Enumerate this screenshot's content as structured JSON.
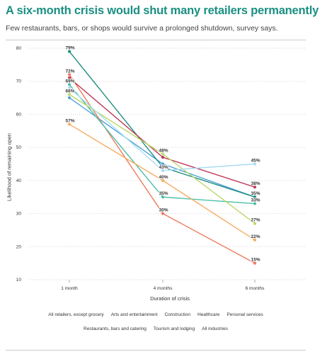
{
  "header": {
    "title": "A six-month crisis would shut many retailers permanently",
    "subtitle": "Few restaurants, bars, or shops would survive a prolonged shutdown, survey says."
  },
  "chart_data": {
    "type": "line",
    "title": "A six-month crisis would shut many retailers permanently",
    "subtitle": "Few restaurants, bars, or shops would survive a prolonged shutdown, survey says.",
    "xlabel": "Duration of crisis",
    "ylabel": "Likelihood of remaining open",
    "categories": [
      "1 month",
      "4 months",
      "6 months"
    ],
    "ylim": [
      10,
      80
    ],
    "yticks": [
      80,
      70,
      60,
      50,
      40,
      30,
      20,
      10
    ],
    "grid": true,
    "legend_position": "bottom",
    "series": [
      {
        "name": "All retailers, except grocery",
        "color": "#4fa3db",
        "values": [
          65,
          45,
          35
        ],
        "labels": [
          "",
          "",
          ""
        ]
      },
      {
        "name": "Arts and entertainment",
        "color": "#ee7b5e",
        "values": [
          72,
          30,
          15
        ],
        "labels": [
          "72%",
          "30%",
          "15%"
        ]
      },
      {
        "name": "Construction",
        "color": "#4cbfa8",
        "values": [
          69,
          35,
          33
        ],
        "labels": [
          "69%",
          "35%",
          "33%"
        ]
      },
      {
        "name": "Healthcare",
        "color": "#1f8f80",
        "values": [
          79,
          44,
          35
        ],
        "labels": [
          "79%",
          "",
          "35%"
        ]
      },
      {
        "name": "Personal services",
        "color": "#c03a5c",
        "values": [
          71,
          47,
          38
        ],
        "labels": [
          "",
          "",
          "38%"
        ]
      },
      {
        "name": "Restaurants, bars and catering",
        "color": "#f5ad63",
        "values": [
          57,
          40,
          22
        ],
        "labels": [
          "57%",
          "40%",
          "22%"
        ]
      },
      {
        "name": "Tourism and lodging",
        "color": "#bcd86a",
        "values": [
          66,
          48,
          27
        ],
        "labels": [
          "66%",
          "48%",
          "27%"
        ]
      },
      {
        "name": "All industries",
        "color": "#a9dcf0",
        "values": [
          68,
          43,
          45
        ],
        "labels": [
          "",
          "43%",
          "45%"
        ]
      }
    ]
  },
  "legend": {
    "row1": [
      "All retailers, except grocery",
      "Arts and entertainment",
      "Construction",
      "Healthcare",
      "Personal services"
    ],
    "row2": [
      "Restaurants, bars and catering",
      "Tourism and lodging",
      "All industries"
    ]
  }
}
